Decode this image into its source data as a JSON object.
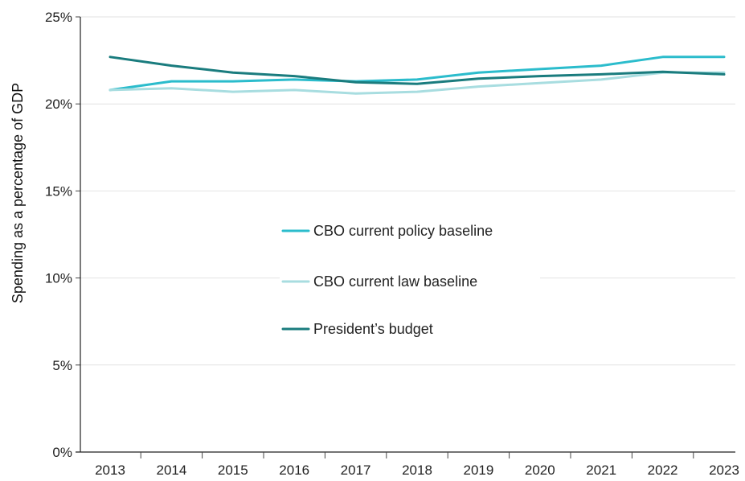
{
  "chart_data": {
    "type": "line",
    "title": "",
    "xlabel": "",
    "ylabel": "Spending as a percentage of GDP",
    "x": [
      "2013",
      "2014",
      "2015",
      "2016",
      "2017",
      "2018",
      "2019",
      "2020",
      "2021",
      "2022",
      "2023"
    ],
    "ylim": [
      0,
      25
    ],
    "yticks": [
      0,
      5,
      10,
      15,
      20,
      25
    ],
    "ytick_labels": [
      "0%",
      "5%",
      "10%",
      "15%",
      "20%",
      "25%"
    ],
    "grid": true,
    "legend_position": "center",
    "series": [
      {
        "name": "CBO current policy baseline",
        "color": "#2bbccc",
        "values": [
          20.8,
          21.3,
          21.3,
          21.4,
          21.3,
          21.4,
          21.8,
          22.0,
          22.2,
          22.7,
          22.7
        ]
      },
      {
        "name": "CBO current law baseline",
        "color": "#a8dde0",
        "values": [
          20.8,
          20.9,
          20.7,
          20.8,
          20.6,
          20.7,
          21.0,
          21.2,
          21.4,
          21.8,
          21.8
        ]
      },
      {
        "name": "President’s budget",
        "color": "#1a7c7e",
        "values": [
          22.7,
          22.2,
          21.8,
          21.6,
          21.25,
          21.15,
          21.45,
          21.6,
          21.7,
          21.85,
          21.7
        ]
      }
    ]
  }
}
